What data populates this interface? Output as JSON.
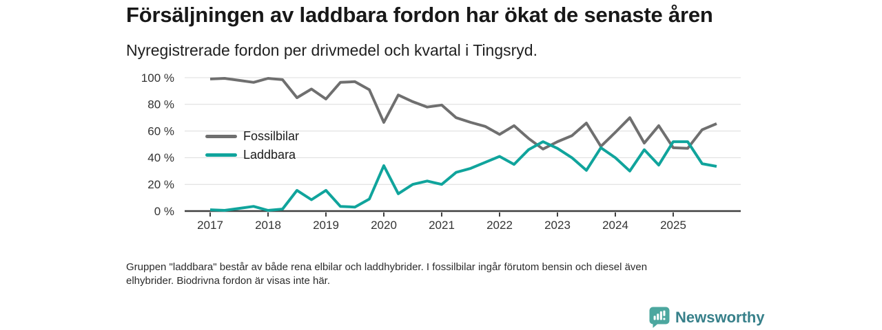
{
  "header": {
    "title": "Försäljningen av laddbara fordon har ökat de senaste åren",
    "subtitle": "Nyregistrerade fordon per drivmedel och kvartal i Tingsryd."
  },
  "chart": {
    "y_axis": {
      "tick_values": [
        0,
        20,
        40,
        60,
        80,
        100
      ],
      "tick_labels": [
        "0 %",
        "20 %",
        "40 %",
        "60 %",
        "80 %",
        "100 %"
      ]
    },
    "x_axis": {
      "tick_labels": [
        "2017",
        "2018",
        "2019",
        "2020",
        "2021",
        "2022",
        "2023",
        "2024",
        "2025"
      ]
    },
    "colors": {
      "grid": "#dcdcdc",
      "axis": "#3f3f3f",
      "tick_text": "#333333"
    }
  },
  "chart_data": {
    "type": "line",
    "title": "Försäljningen av laddbara fordon har ökat de senaste åren",
    "subtitle": "Nyregistrerade fordon per drivmedel och kvartal i Tingsryd.",
    "xlabel": "",
    "ylabel": "",
    "ylim": [
      0,
      100
    ],
    "grid": "horizontal",
    "legend_position": "inside-left",
    "x_categories": [
      "2017 Q1",
      "2017 Q2",
      "2017 Q3",
      "2017 Q4",
      "2018 Q1",
      "2018 Q2",
      "2018 Q3",
      "2018 Q4",
      "2019 Q1",
      "2019 Q2",
      "2019 Q3",
      "2019 Q4",
      "2020 Q1",
      "2020 Q2",
      "2020 Q3",
      "2020 Q4",
      "2021 Q1",
      "2021 Q2",
      "2021 Q3",
      "2021 Q4",
      "2022 Q1",
      "2022 Q2",
      "2022 Q3",
      "2022 Q4",
      "2023 Q1",
      "2023 Q2",
      "2023 Q3",
      "2023 Q4",
      "2024 Q1",
      "2024 Q2",
      "2024 Q3",
      "2024 Q4",
      "2025 Q1",
      "2025 Q2",
      "2025 Q3",
      "2025 Q4"
    ],
    "series": [
      {
        "name": "Fossilbilar",
        "color": "#6f6f6f",
        "values": [
          99,
          99.5,
          98,
          96.5,
          99.5,
          98.5,
          85,
          91.5,
          84,
          96.5,
          97,
          91,
          66.5,
          87,
          82,
          78,
          79.5,
          70,
          66.5,
          63.5,
          57.5,
          64,
          54.5,
          46.5,
          52,
          56.5,
          66,
          48.5,
          59,
          70,
          51,
          64,
          47.5,
          47,
          61,
          65.5
        ]
      },
      {
        "name": "Laddbara",
        "color": "#10a49c",
        "values": [
          1,
          0.5,
          2,
          3.5,
          0.5,
          1.5,
          15.5,
          8.5,
          15.5,
          3.5,
          3,
          9,
          34,
          13,
          20,
          22.5,
          20,
          29,
          32,
          36.5,
          41,
          35,
          46,
          52,
          47,
          40,
          30.5,
          47.5,
          40,
          30,
          46,
          34.5,
          52,
          52,
          35.5,
          33.5
        ]
      }
    ]
  },
  "footnote": {
    "line1": "Gruppen \"laddbara\" består av både rena elbilar och laddhybrider. I fossilbilar ingår förutom bensin och diesel även",
    "line2": "elhybrider. Biodrivna fordon är visas inte här."
  },
  "logo": {
    "text": "Newsworthy",
    "icon": "bar-chart-speech-bubble-icon",
    "icon_color": "#4ca79f",
    "text_color": "#37808a"
  }
}
